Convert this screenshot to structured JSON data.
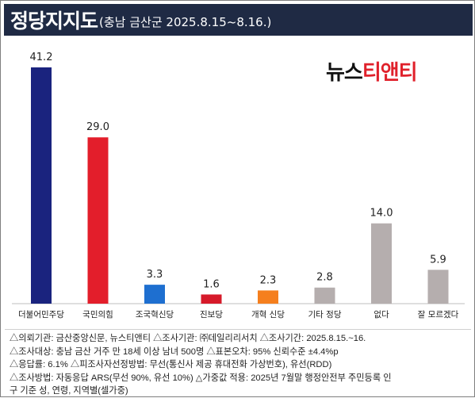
{
  "header": {
    "title": "정당지지도",
    "subtitle": "(충남 금산군 2025.8.15~8.16.)"
  },
  "logo": {
    "part1": "뉴스",
    "part2": "티앤티"
  },
  "colors": {
    "header_bg": "#1f2a44",
    "logo_red": "#e0212b"
  },
  "chart_data": {
    "type": "bar",
    "categories": [
      "더불어민주당",
      "국민의힘",
      "조국혁신당",
      "진보당",
      "개혁 신당",
      "기타 정당",
      "없다",
      "잘 모르겠다"
    ],
    "values": [
      41.2,
      29.0,
      3.3,
      1.6,
      2.3,
      2.8,
      14.0,
      5.9
    ],
    "value_labels": [
      "41.2",
      "29.0",
      "3.3",
      "1.6",
      "2.3",
      "2.8",
      "14.0",
      "5.9"
    ],
    "colors": [
      "#1a237e",
      "#e31e2b",
      "#1e6fd0",
      "#d61a2a",
      "#f57f1e",
      "#b5aeae",
      "#b5aeae",
      "#b5aeae"
    ],
    "ylim": [
      0,
      41.2
    ],
    "grid": false,
    "legend": false
  },
  "footer": {
    "lines": [
      "△의뢰기관: 금산중앙신문, 뉴스티앤티 △조사기관: ㈜데일리리서치 △조사기간: 2025.8.15.~16.",
      "△조사대상: 충남 금산 거주 만 18세 이상 남녀 500명 △표본오차: 95% 신뢰수준 ±4.4%p",
      "△응답률: 6.1% △피조사자선정방법: 무선(통신사 제공 휴대전화 가상번호), 유선(RDD)",
      "△조사방법: 자동응답 ARS(무선 90%, 유선 10%) △가중값 적용: 2025년 7월말 행정안전부 주민등록 인",
      "구 기준 성, 연령, 지역별(셀가중)"
    ]
  }
}
